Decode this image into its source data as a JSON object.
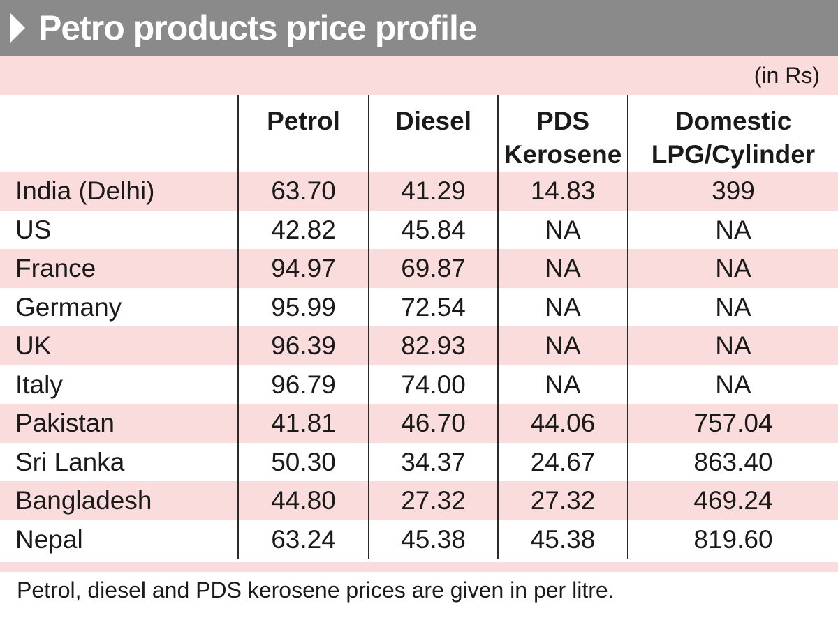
{
  "chart_data": {
    "type": "table",
    "title": "Petro products price profile",
    "unit": "(in Rs)",
    "columns": [
      "",
      "Petrol",
      "Diesel",
      "PDS Kerosene",
      "Domestic LPG/Cylinder"
    ],
    "header_lines": [
      [
        ""
      ],
      [
        "Petrol"
      ],
      [
        "Diesel"
      ],
      [
        "PDS",
        "Kerosene"
      ],
      [
        "Domestic",
        "LPG/Cylinder"
      ]
    ],
    "rows": [
      [
        "India (Delhi)",
        "63.70",
        "41.29",
        "14.83",
        "399"
      ],
      [
        "US",
        "42.82",
        "45.84",
        "NA",
        "NA"
      ],
      [
        "France",
        "94.97",
        "69.87",
        "NA",
        "NA"
      ],
      [
        "Germany",
        "95.99",
        "72.54",
        "NA",
        "NA"
      ],
      [
        "UK",
        "96.39",
        "82.93",
        "NA",
        "NA"
      ],
      [
        "Italy",
        "96.79",
        "74.00",
        "NA",
        "NA"
      ],
      [
        "Pakistan",
        "41.81",
        "46.70",
        "44.06",
        "757.04"
      ],
      [
        "Sri Lanka",
        "50.30",
        "34.37",
        "24.67",
        "863.40"
      ],
      [
        "Bangladesh",
        "44.80",
        "27.32",
        "27.32",
        "469.24"
      ],
      [
        "Nepal",
        "63.24",
        "45.38",
        "45.38",
        "819.60"
      ]
    ],
    "footnote": "Petrol, diesel and PDS kerosene prices are given in per litre."
  },
  "colors": {
    "title_band": "#8a8a8a",
    "row_tint": "#fbdcdc",
    "rule": "#2a2a2a"
  }
}
